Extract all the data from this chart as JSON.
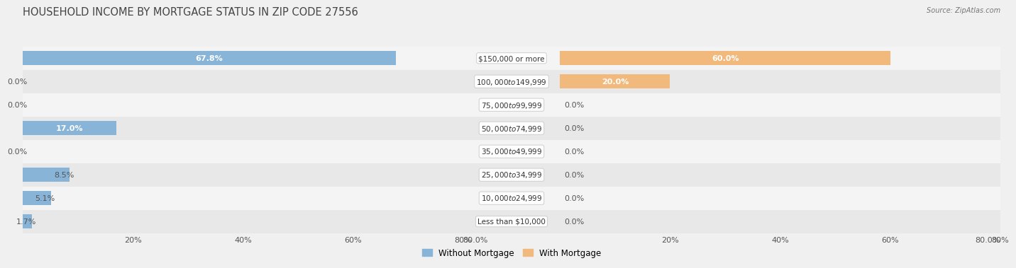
{
  "title": "HOUSEHOLD INCOME BY MORTGAGE STATUS IN ZIP CODE 27556",
  "source": "Source: ZipAtlas.com",
  "categories": [
    "Less than $10,000",
    "$10,000 to $24,999",
    "$25,000 to $34,999",
    "$35,000 to $49,999",
    "$50,000 to $74,999",
    "$75,000 to $99,999",
    "$100,000 to $149,999",
    "$150,000 or more"
  ],
  "without_mortgage": [
    1.7,
    5.1,
    8.5,
    0.0,
    17.0,
    0.0,
    0.0,
    67.8
  ],
  "with_mortgage": [
    0.0,
    0.0,
    0.0,
    0.0,
    0.0,
    0.0,
    20.0,
    60.0
  ],
  "xlim": 80.0,
  "color_without": "#88b4d8",
  "color_with": "#f2b97c",
  "bg_row_odd": "#f4f4f4",
  "bg_row_even": "#e8e8e8",
  "bg_main": "#f0f0f0",
  "title_color": "#444444",
  "label_color": "#555555",
  "title_fontsize": 10.5,
  "label_fontsize": 8.0,
  "cat_fontsize": 7.5,
  "legend_fontsize": 8.5,
  "axis_fontsize": 8.0,
  "bar_height": 0.62,
  "threshold_inside": 12
}
